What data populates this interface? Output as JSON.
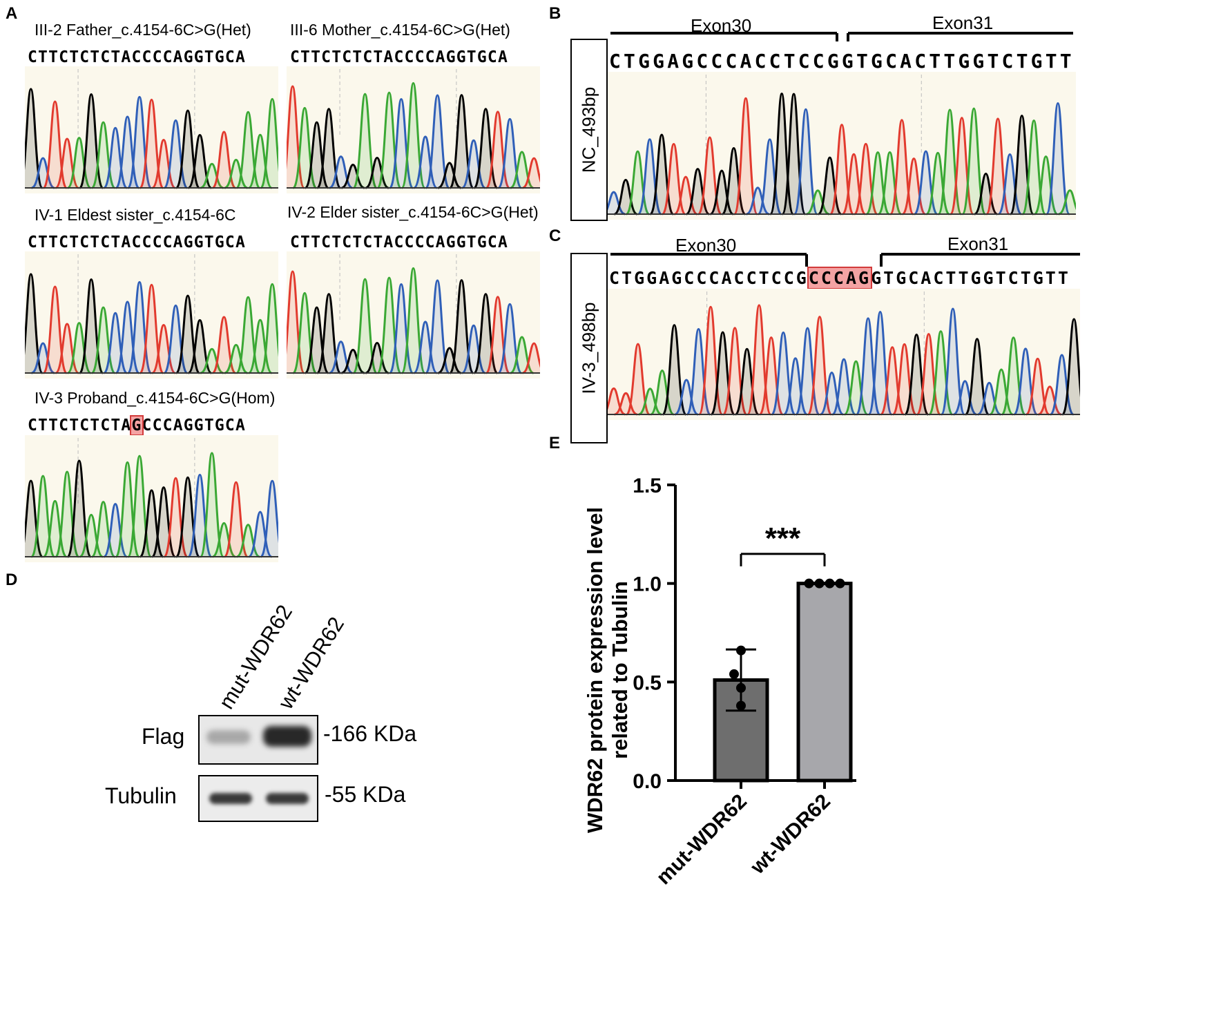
{
  "panels": {
    "A": {
      "letter": "A",
      "traces": [
        {
          "title": "III-2 Father_c.4154-6C>G(Het)",
          "sequence": "CTTCTCTCTACCCCAGGTGCA"
        },
        {
          "title": "III-6 Mother_c.4154-6C>G(Het)",
          "sequence": "CTTCTCTCTACCCCAGGTGCA"
        },
        {
          "title": "IV-1 Eldest sister_c.4154-6C",
          "sequence": "CTTCTCTCTACCCCAGGTGCA"
        },
        {
          "title": "IV-2 Elder sister_c.4154-6C>G(Het)",
          "sequence": "CTTCTCTCTACCCCAGGTGCA"
        },
        {
          "title": "IV-3 Proband_c.4154-6C>G(Hom)",
          "seq_before": "CTTCTCTCTA",
          "seq_mut": "G",
          "seq_after": "CCCAGGTGCA"
        }
      ]
    },
    "B": {
      "letter": "B",
      "label": "NC_493bp",
      "exon_left": "Exon30",
      "exon_right": "Exon31",
      "sequence": "CTGGAGCCCACCTCCGGTGCACTTGGTCTGTT"
    },
    "C": {
      "letter": "C",
      "label": "IV-3_498bp",
      "exon_left": "Exon30",
      "exon_right": "Exon31",
      "seq_before": "CTGGAGCCCACCTCCG",
      "seq_insert": "CCCAG",
      "seq_after": "GTGCACTTGGTCTGTT"
    },
    "D": {
      "letter": "D",
      "lane_labels": [
        "mut-WDR62",
        "wt-WDR62"
      ],
      "bands": [
        {
          "name": "Flag",
          "size": "-166 KDa"
        },
        {
          "name": "Tubulin",
          "size": "-55 KDa"
        }
      ]
    },
    "E": {
      "letter": "E",
      "significance": "***"
    }
  },
  "chart_data": {
    "type": "bar",
    "title": "",
    "xlabel": "",
    "ylabel": "WDR62 protein expression level related to Tubulin",
    "ylabel_lines": [
      "WDR62 protein expression level",
      "related to Tubulin"
    ],
    "categories": [
      "mut-WDR62",
      "wt-WDR62"
    ],
    "values": [
      0.51,
      1.0
    ],
    "error_sd": [
      0.155,
      0.0
    ],
    "points": [
      [
        0.66,
        0.54,
        0.47,
        0.38
      ],
      [
        1.0,
        1.0,
        1.0,
        1.0
      ]
    ],
    "ylim": [
      0,
      1.5
    ],
    "yticks": [
      "0.0",
      "0.5",
      "1.0",
      "1.5"
    ],
    "bar_colors": [
      "#6e6e6e",
      "#a7a7ab"
    ],
    "significance": "***",
    "grid": false
  },
  "colors": {
    "trace_bg": "#fbf8ec",
    "A_base": "#e23a2e",
    "C_base": "#2f5fb8",
    "G_base": "#000000",
    "T_base": "#3aa834",
    "highlight": "#f4a3a3"
  }
}
